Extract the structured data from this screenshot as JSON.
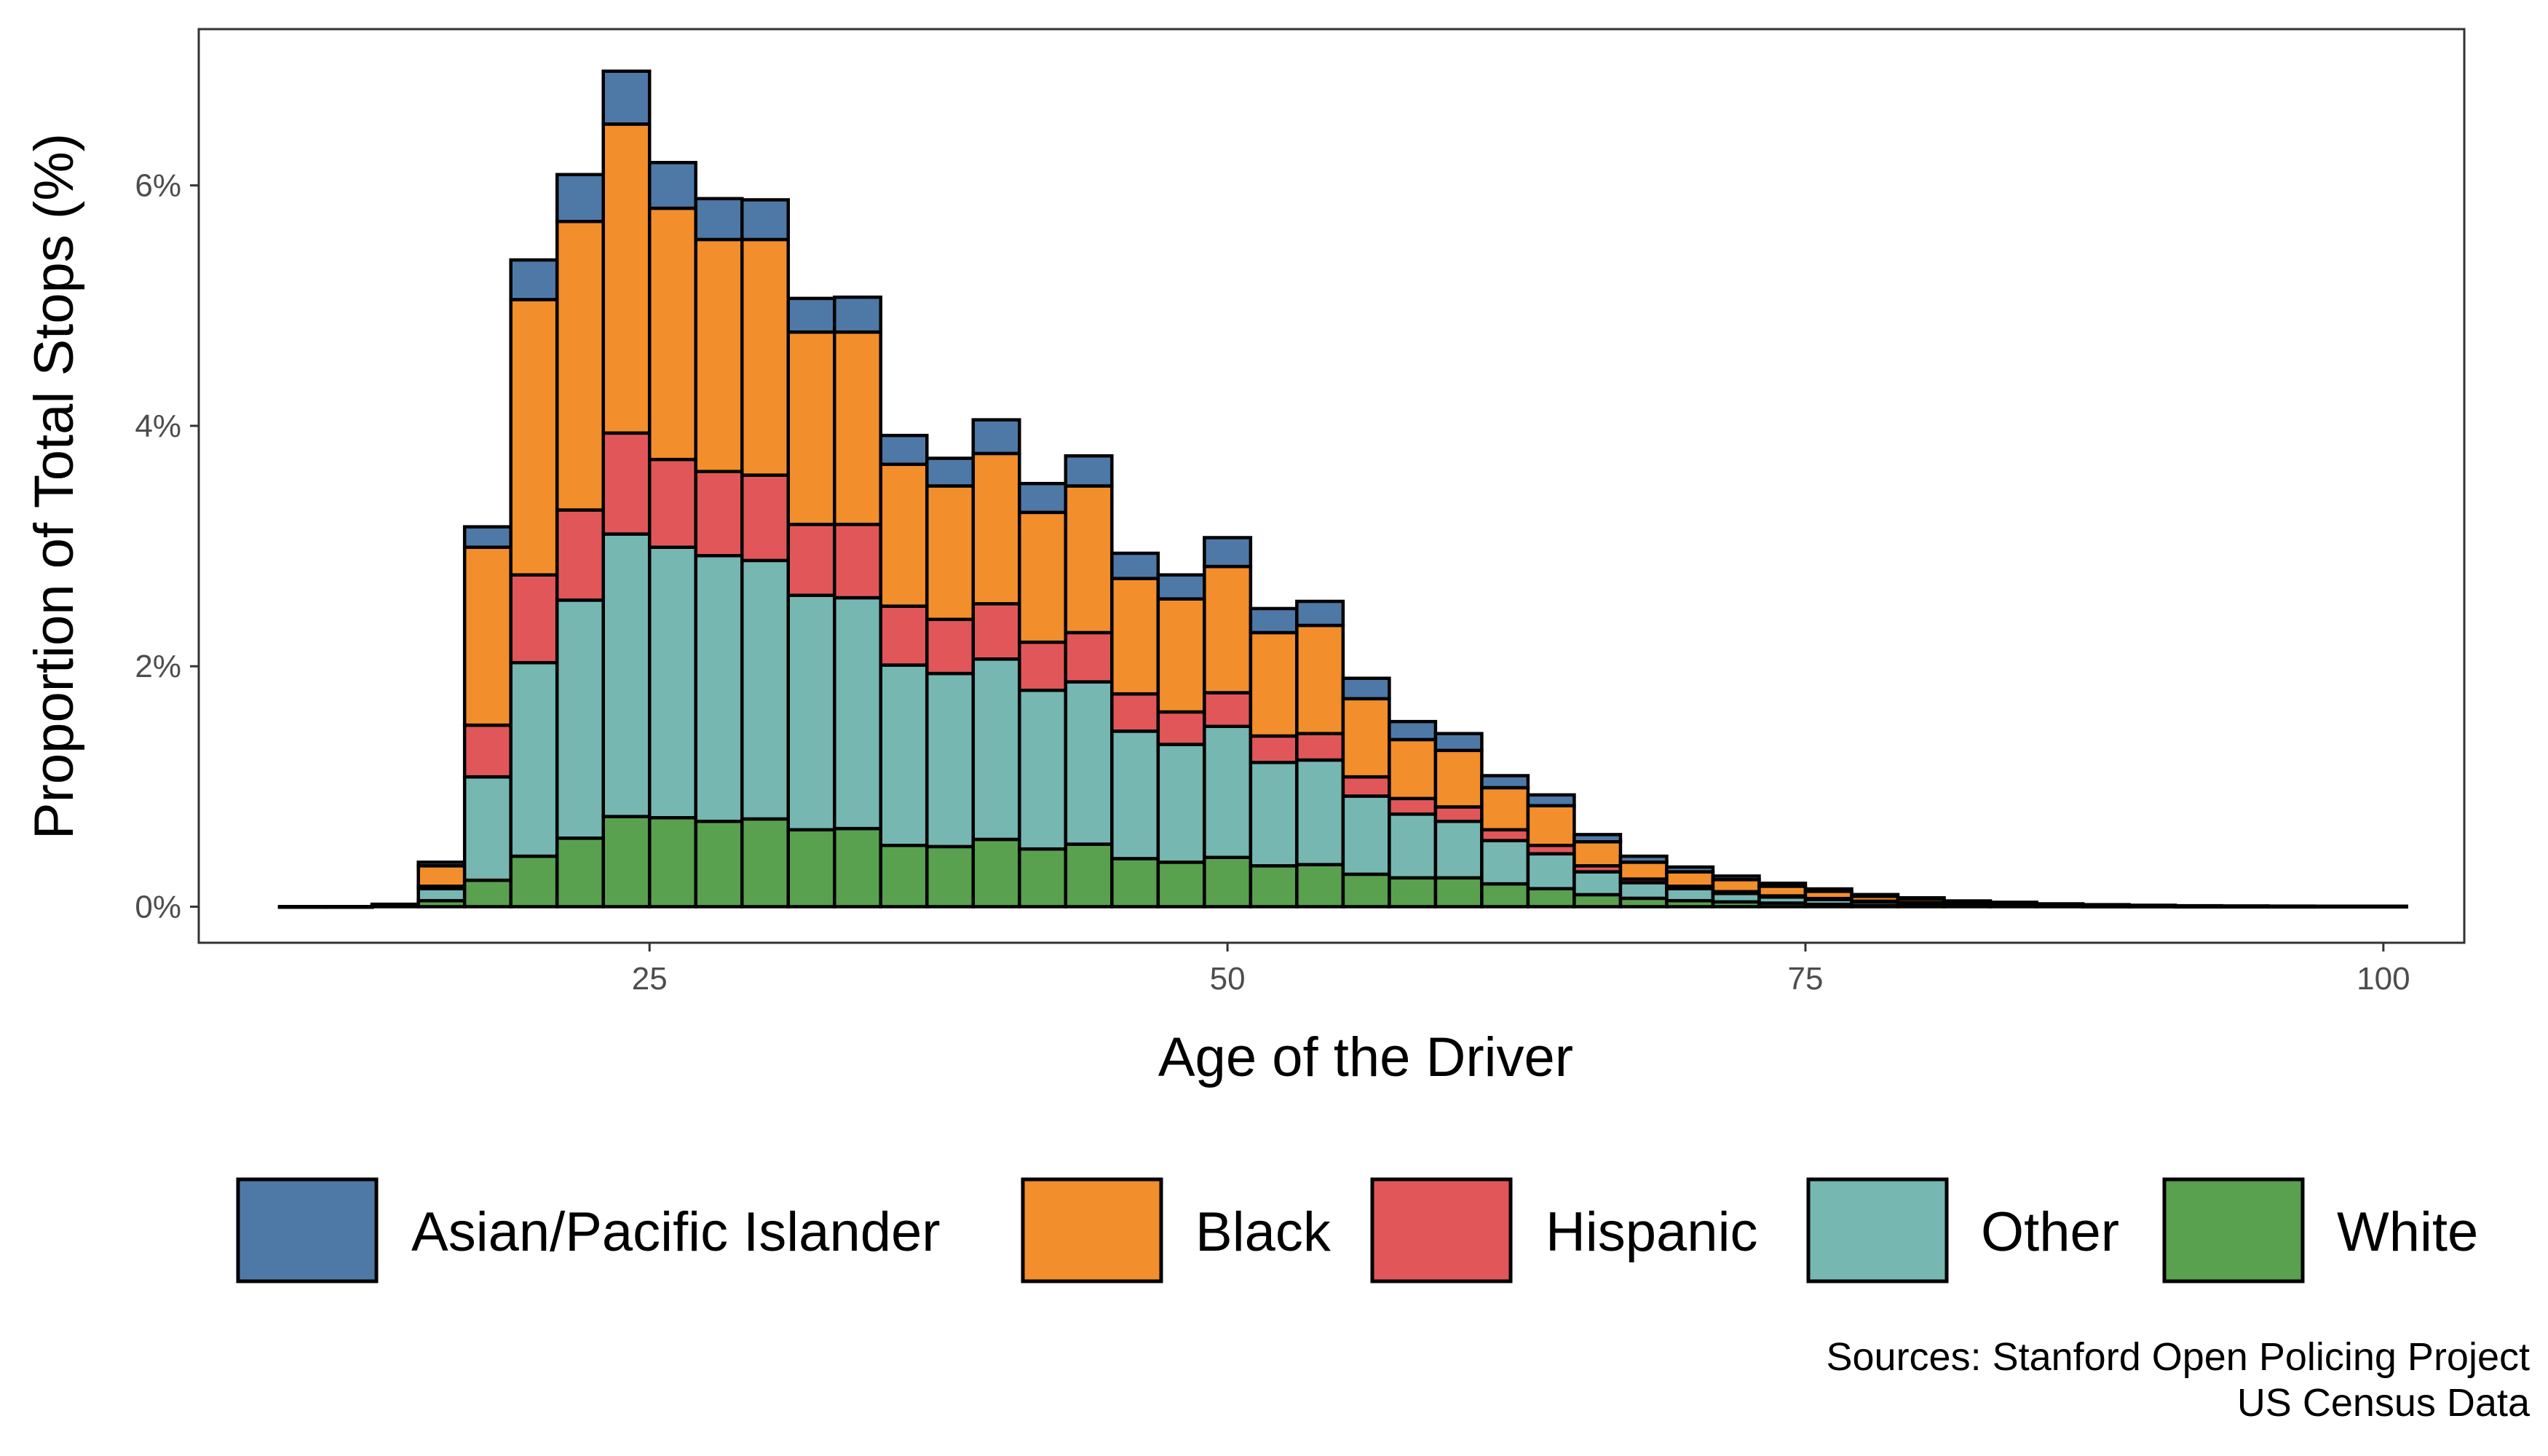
{
  "chart_data": {
    "type": "bar",
    "stacked": true,
    "xlabel": "Age of the Driver",
    "ylabel": "Proportion of Total Stops (%)",
    "x_ticks": [
      "25",
      "50",
      "75",
      "100"
    ],
    "y_ticks": [
      "0%",
      "2%",
      "4%",
      "6%"
    ],
    "xlim": [
      5.5,
      103.5
    ],
    "ylim": [
      -0.3,
      7.3
    ],
    "grid": false,
    "legend_position": "bottom",
    "caption": [
      "Sources: Stanford Open Policing Project",
      "US Census Data"
    ],
    "bin_width": 2,
    "x": [
      10,
      12,
      14,
      16,
      18,
      20,
      22,
      24,
      26,
      28,
      30,
      32,
      34,
      36,
      38,
      40,
      42,
      44,
      46,
      48,
      50,
      52,
      54,
      56,
      58,
      60,
      62,
      64,
      66,
      68,
      70,
      72,
      74,
      76,
      78,
      80,
      82,
      84,
      86,
      88,
      90,
      92,
      94,
      96,
      98,
      100
    ],
    "series": [
      {
        "name": "White",
        "color": "#59a14f",
        "values": [
          0,
          0,
          0.005,
          0.05,
          0.22,
          0.42,
          0.57,
          0.75,
          0.74,
          0.71,
          0.73,
          0.64,
          0.65,
          0.51,
          0.5,
          0.56,
          0.48,
          0.52,
          0.4,
          0.37,
          0.41,
          0.34,
          0.35,
          0.27,
          0.24,
          0.24,
          0.19,
          0.15,
          0.1,
          0.07,
          0.05,
          0.04,
          0.03,
          0.02,
          0.01,
          0.01,
          0.005,
          0.004,
          0.003,
          0.002,
          0.002,
          0.001,
          0.001,
          0.001,
          0.001,
          0.001
        ]
      },
      {
        "name": "Other",
        "color": "#76b7b2",
        "values": [
          0,
          0,
          0.01,
          0.1,
          0.86,
          1.61,
          1.98,
          2.35,
          2.25,
          2.21,
          2.15,
          1.95,
          1.92,
          1.5,
          1.44,
          1.5,
          1.32,
          1.35,
          1.06,
          0.98,
          1.09,
          0.86,
          0.87,
          0.65,
          0.53,
          0.47,
          0.36,
          0.29,
          0.19,
          0.13,
          0.1,
          0.07,
          0.05,
          0.04,
          0.03,
          0.02,
          0.012,
          0.01,
          0.006,
          0.005,
          0.003,
          0.002,
          0.002,
          0.001,
          0.001,
          0.001
        ]
      },
      {
        "name": "Hispanic",
        "color": "#e15759",
        "values": [
          0,
          0,
          0,
          0.02,
          0.43,
          0.73,
          0.75,
          0.84,
          0.73,
          0.7,
          0.71,
          0.59,
          0.61,
          0.49,
          0.45,
          0.46,
          0.4,
          0.41,
          0.31,
          0.27,
          0.28,
          0.22,
          0.22,
          0.16,
          0.13,
          0.12,
          0.09,
          0.07,
          0.05,
          0.03,
          0.02,
          0.015,
          0.01,
          0.008,
          0.006,
          0.004,
          0.003,
          0.002,
          0.001,
          0.001,
          0.001,
          0,
          0,
          0,
          0,
          0
        ]
      },
      {
        "name": "Black",
        "color": "#f28e2b",
        "values": [
          0,
          0,
          0.005,
          0.17,
          1.48,
          2.29,
          2.4,
          2.57,
          2.09,
          1.93,
          1.96,
          1.6,
          1.6,
          1.18,
          1.11,
          1.25,
          1.08,
          1.22,
          0.96,
          0.94,
          1.05,
          0.86,
          0.9,
          0.65,
          0.49,
          0.47,
          0.35,
          0.33,
          0.2,
          0.14,
          0.12,
          0.1,
          0.08,
          0.06,
          0.04,
          0.03,
          0.02,
          0.015,
          0.01,
          0.006,
          0.004,
          0.003,
          0.002,
          0.002,
          0.001,
          0.001
        ]
      },
      {
        "name": "Asian/Pacific Islander",
        "color": "#4e79a7",
        "values": [
          0,
          0,
          0,
          0.03,
          0.17,
          0.33,
          0.39,
          0.44,
          0.38,
          0.34,
          0.33,
          0.28,
          0.29,
          0.24,
          0.23,
          0.28,
          0.24,
          0.25,
          0.21,
          0.2,
          0.24,
          0.2,
          0.2,
          0.17,
          0.15,
          0.14,
          0.1,
          0.09,
          0.06,
          0.05,
          0.04,
          0.03,
          0.025,
          0.02,
          0.015,
          0.01,
          0.008,
          0.006,
          0.004,
          0.003,
          0.002,
          0.002,
          0.001,
          0.001,
          0.001,
          0.001
        ]
      }
    ],
    "legend": [
      {
        "name": "Asian/Pacific Islander",
        "color": "#4e79a7"
      },
      {
        "name": "Black",
        "color": "#f28e2b"
      },
      {
        "name": "Hispanic",
        "color": "#e15759"
      },
      {
        "name": "Other",
        "color": "#76b7b2"
      },
      {
        "name": "White",
        "color": "#59a14f"
      }
    ]
  }
}
